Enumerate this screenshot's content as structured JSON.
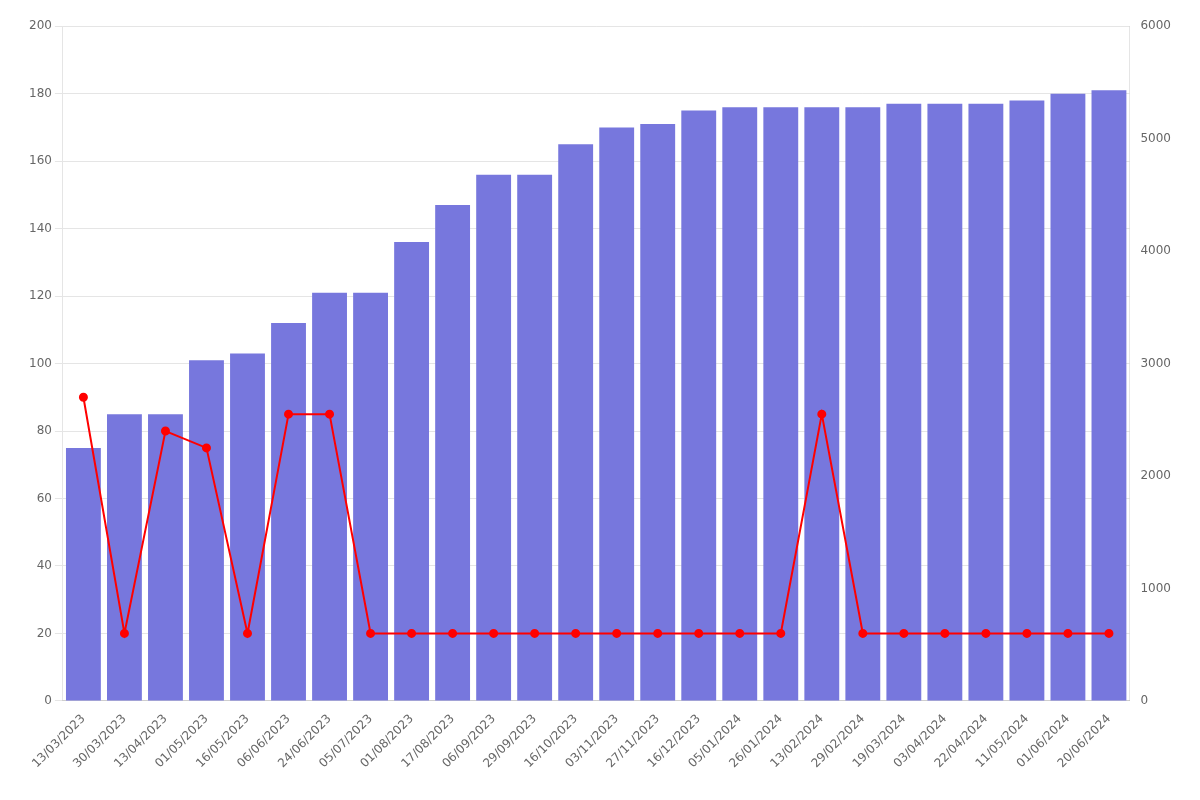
{
  "chart_data": {
    "type": "bar",
    "categories": [
      "13/03/2023",
      "30/03/2023",
      "13/04/2023",
      "01/05/2023",
      "16/05/2023",
      "06/06/2023",
      "24/06/2023",
      "05/07/2023",
      "01/08/2023",
      "17/08/2023",
      "06/09/2023",
      "29/09/2023",
      "16/10/2023",
      "03/11/2023",
      "27/11/2023",
      "16/12/2023",
      "05/01/2024",
      "26/01/2024",
      "13/02/2024",
      "29/02/2024",
      "19/03/2024",
      "03/04/2024",
      "22/04/2024",
      "11/05/2024",
      "01/06/2024",
      "20/06/2024"
    ],
    "series": [
      {
        "type": "bar",
        "color": "#7777dd",
        "values": [
          75,
          85,
          85,
          101,
          103,
          112,
          121,
          121,
          136,
          147,
          156,
          156,
          165,
          170,
          171,
          175,
          176,
          176,
          176,
          176,
          177,
          177,
          177,
          178,
          180,
          181
        ]
      },
      {
        "type": "line",
        "color": "#ff0000",
        "marker": "circle",
        "values": [
          90,
          20,
          80,
          75,
          20,
          85,
          85,
          20,
          20,
          20,
          20,
          20,
          20,
          20,
          20,
          20,
          20,
          20,
          85,
          20,
          20,
          20,
          20,
          20,
          20,
          20
        ]
      }
    ],
    "ylim": [
      0,
      200
    ],
    "yticks": [
      0,
      20,
      40,
      60,
      80,
      100,
      120,
      140,
      160,
      180,
      200
    ],
    "y2lim": [
      0,
      6000
    ],
    "y2ticks": [
      0,
      1000,
      2000,
      3000,
      4000,
      5000,
      6000
    ],
    "grid": true
  }
}
